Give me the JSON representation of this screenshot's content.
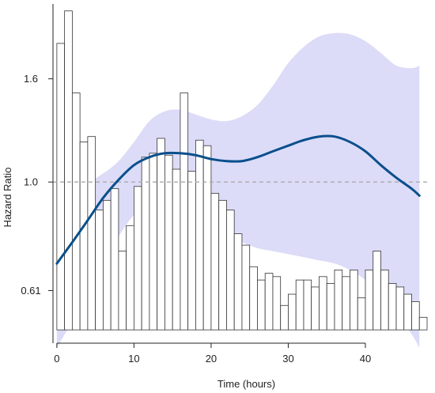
{
  "chart_data": {
    "type": "line",
    "title": "",
    "xlabel": "Time (hours)",
    "ylabel": "Hazard Ratio",
    "x_ticks": [
      0,
      10,
      20,
      30,
      40
    ],
    "y_ticks": [
      {
        "value": 0.61,
        "label": "0.61"
      },
      {
        "value": 1.0,
        "label": "1.0"
      },
      {
        "value": 1.6,
        "label": "1.6"
      }
    ],
    "y_scale": "log",
    "xlim": [
      -0.5,
      48
    ],
    "ylim": [
      0.48,
      2.25
    ],
    "reference_line": {
      "y": 1.0,
      "style": "dashed",
      "color": "#aaaaaa"
    },
    "histogram": {
      "bin_width": 1,
      "x_start": 0,
      "bar_tops_on_hr_scale": [
        1.88,
        2.18,
        1.5,
        1.2,
        1.23,
        0.88,
        0.92,
        0.97,
        0.73,
        0.82,
        0.98,
        1.12,
        1.14,
        1.22,
        1.13,
        1.06,
        1.5,
        1.05,
        1.21,
        1.18,
        0.95,
        0.92,
        0.88,
        0.79,
        0.75,
        0.68,
        0.64,
        0.66,
        0.65,
        0.57,
        0.6,
        0.64,
        0.64,
        0.62,
        0.65,
        0.63,
        0.67,
        0.65,
        0.67,
        0.59,
        0.67,
        0.73,
        0.67,
        0.63,
        0.62,
        0.6,
        0.58,
        0.54
      ],
      "baseline_hr": 0.51,
      "fill": "#ffffff",
      "stroke": "#333333"
    },
    "series": [
      {
        "color": "#0a4f8c",
        "x": [
          0,
          2,
          4,
          6,
          8,
          10,
          12,
          14,
          16,
          18,
          20,
          22,
          24,
          26,
          28,
          30,
          32,
          34,
          36,
          38,
          40,
          42,
          44,
          46,
          47
        ],
        "y": [
          0.69,
          0.76,
          0.84,
          0.93,
          1.01,
          1.08,
          1.12,
          1.14,
          1.14,
          1.13,
          1.11,
          1.1,
          1.1,
          1.12,
          1.15,
          1.18,
          1.21,
          1.23,
          1.23,
          1.2,
          1.15,
          1.08,
          1.02,
          0.97,
          0.94
        ],
        "lower": [
          0.47,
          0.53,
          0.6,
          0.69,
          0.78,
          0.86,
          0.9,
          0.92,
          0.9,
          0.87,
          0.83,
          0.79,
          0.76,
          0.74,
          0.73,
          0.72,
          0.71,
          0.7,
          0.69,
          0.67,
          0.64,
          0.6,
          0.55,
          0.5,
          0.47
        ],
        "upper": [
          0.97,
          0.99,
          1.0,
          1.04,
          1.1,
          1.2,
          1.32,
          1.38,
          1.39,
          1.36,
          1.33,
          1.32,
          1.35,
          1.42,
          1.55,
          1.72,
          1.85,
          1.94,
          1.97,
          1.96,
          1.9,
          1.8,
          1.7,
          1.68,
          1.7
        ],
        "band_color": "#dcdcf8"
      }
    ]
  }
}
